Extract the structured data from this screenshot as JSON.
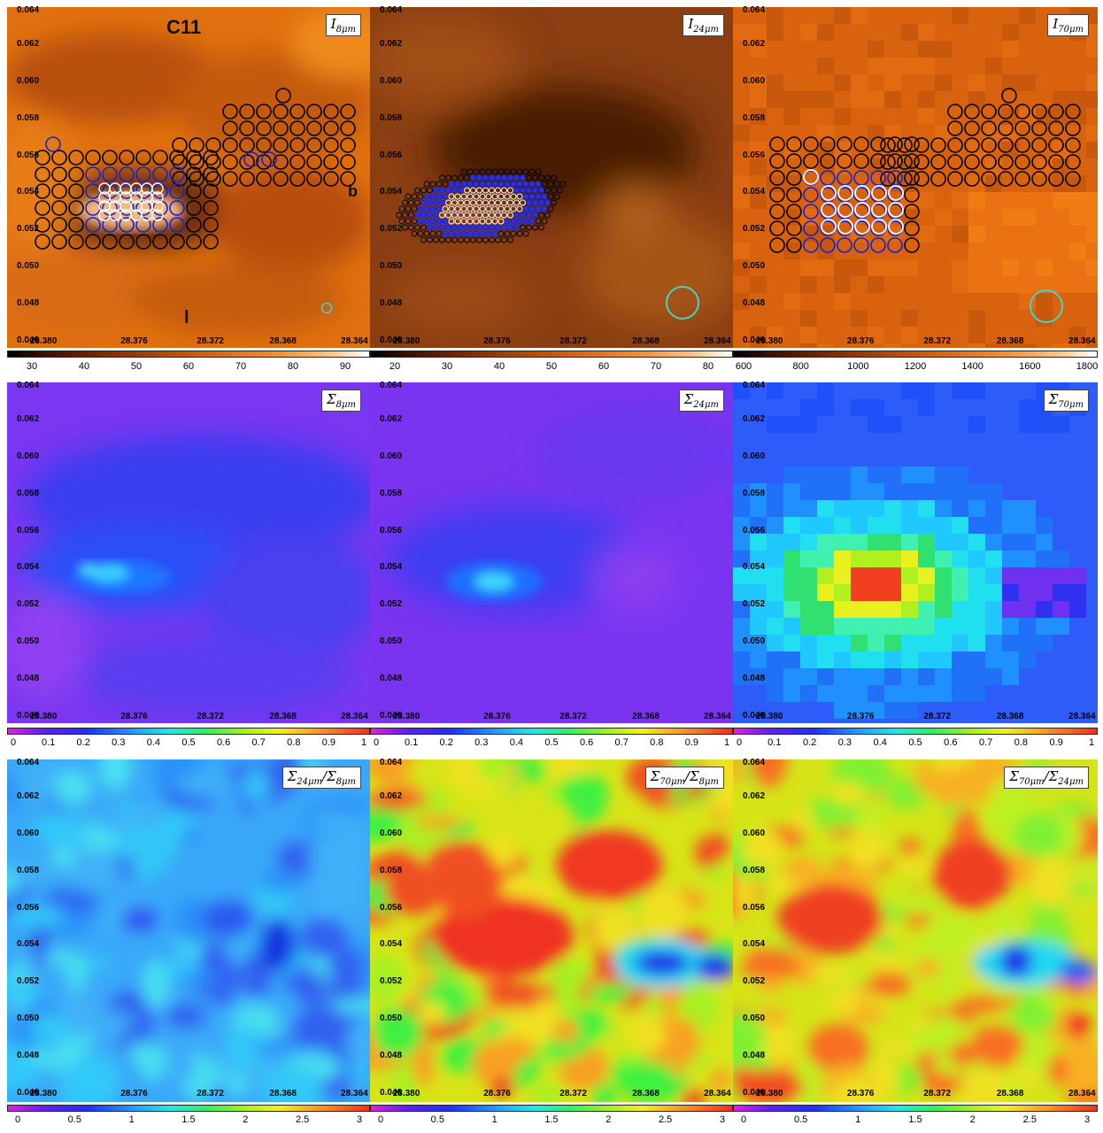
{
  "axis": {
    "y_ticks": [
      "0.064",
      "0.062",
      "0.060",
      "0.058",
      "0.056",
      "0.054",
      "0.052",
      "0.050",
      "0.048",
      "0.046"
    ],
    "x_ticks": [
      "28.380",
      "28.376",
      "28.372",
      "28.368",
      "28.364"
    ]
  },
  "row1": {
    "panels": [
      {
        "label_main": "I",
        "label_sub": "8μm"
      },
      {
        "label_main": "I",
        "label_sub": "24μm"
      },
      {
        "label_main": "I",
        "label_sub": "70μm"
      }
    ],
    "colorbars": [
      {
        "ticks": [
          "30",
          "40",
          "50",
          "60",
          "70",
          "80",
          "90"
        ]
      },
      {
        "ticks": [
          "20",
          "30",
          "40",
          "50",
          "60",
          "70",
          "80"
        ]
      },
      {
        "ticks": [
          "600",
          "800",
          "1000",
          "1200",
          "1400",
          "1600",
          "1800"
        ]
      }
    ]
  },
  "row2": {
    "panels": [
      {
        "label_main": "Σ",
        "label_sub": "8μm"
      },
      {
        "label_main": "Σ",
        "label_sub": "24μm"
      },
      {
        "label_main": "Σ",
        "label_sub": "70μm"
      }
    ],
    "colorbar_ticks": [
      "0",
      "0.1",
      "0.2",
      "0.3",
      "0.4",
      "0.5",
      "0.6",
      "0.7",
      "0.8",
      "0.9",
      "1"
    ]
  },
  "row3": {
    "panels": [
      {
        "label_main": "Σ",
        "label_sub": "24μm",
        "label_sep": "/Σ",
        "label_sub2": "8μm"
      },
      {
        "label_main": "Σ",
        "label_sub": "70μm",
        "label_sep": "/Σ",
        "label_sub2": "8μm"
      },
      {
        "label_main": "Σ",
        "label_sub": "70μm",
        "label_sep": "/Σ",
        "label_sub2": "24μm"
      }
    ],
    "colorbar_ticks": [
      "0",
      "0.5",
      "1",
      "1.5",
      "2",
      "2.5",
      "3"
    ]
  },
  "annotations": {
    "cloud_name": "C11",
    "b_label": "b",
    "l_label": "l"
  },
  "colors": {
    "orange_bg": "#d9650f",
    "brown_bg": "#8a3c12",
    "violet_bg": "#7a36f0",
    "blue_bg": "#2a4ef5",
    "cyan": "#40d8ff",
    "beam_circle": "#3fd5c8",
    "marker_black": "#000000",
    "marker_blue": "#1a22c8",
    "marker_white": "#ffffff"
  },
  "images": {
    "description_free": true
  }
}
